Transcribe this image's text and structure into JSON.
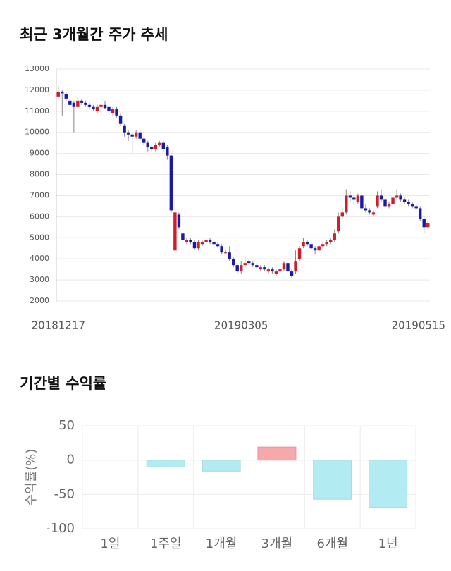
{
  "chart_data": [
    {
      "type": "candlestick",
      "title": "최근 3개월간 주가 추세",
      "categories": [
        "20181217",
        null,
        null,
        null,
        null,
        null,
        null,
        null,
        null,
        null,
        null,
        null,
        null,
        null,
        null,
        null,
        null,
        null,
        null,
        null,
        null,
        null,
        null,
        null,
        null,
        null,
        null,
        null,
        null,
        null,
        null,
        null,
        null,
        null,
        null,
        null,
        null,
        null,
        null,
        null,
        null,
        null,
        null,
        null,
        null,
        null,
        null,
        "20190305",
        null,
        null,
        null,
        null,
        null,
        null,
        null,
        null,
        null,
        null,
        null,
        null,
        null,
        null,
        null,
        null,
        null,
        null,
        null,
        null,
        null,
        null,
        null,
        null,
        null,
        null,
        null,
        null,
        null,
        null,
        null,
        null,
        null,
        null,
        null,
        null,
        null,
        null,
        null,
        null,
        null,
        null,
        null,
        null,
        null,
        null,
        null,
        "20190515"
      ],
      "open": [
        11700,
        11900,
        11800,
        11500,
        11400,
        11200,
        11500,
        11400,
        11300,
        11200,
        11000,
        11200,
        11300,
        11200,
        10900,
        11100,
        10800,
        10300,
        10000,
        9900,
        9800,
        10000,
        9700,
        9500,
        9300,
        9200,
        9400,
        9500,
        9300,
        8900,
        4400,
        6100,
        5200,
        4800,
        4900,
        4800,
        4500,
        4700,
        4800,
        4900,
        4800,
        4700,
        4600,
        4300,
        4300,
        4000,
        3700,
        3400,
        3700,
        3900,
        3800,
        3700,
        3500,
        3600,
        3400,
        3500,
        3300,
        3400,
        3500,
        3800,
        3400,
        3400,
        4000,
        4600,
        4800,
        4700,
        4500,
        4400,
        4600,
        4700,
        4800,
        4900,
        5300,
        6000,
        6200,
        7000,
        6900,
        6700,
        7000,
        6400,
        6300,
        6100,
        6500,
        7000,
        6800,
        6500,
        6600,
        6900,
        7000,
        6800,
        6700,
        6600,
        6500,
        6400,
        5900,
        5500
      ],
      "high": [
        12200,
        12000,
        11900,
        11600,
        11500,
        11700,
        11600,
        11500,
        11400,
        11300,
        11300,
        11400,
        11500,
        11300,
        11200,
        11200,
        10900,
        10400,
        10100,
        10000,
        10100,
        10100,
        9800,
        9600,
        9400,
        9500,
        9600,
        9600,
        9400,
        9000,
        6800,
        6200,
        5300,
        5000,
        5000,
        4900,
        4900,
        4900,
        5000,
        5000,
        4900,
        4800,
        4700,
        4400,
        4600,
        4100,
        3800,
        3900,
        4100,
        4000,
        3900,
        3800,
        3700,
        3700,
        3600,
        3600,
        3500,
        3600,
        3900,
        3900,
        3500,
        4400,
        4600,
        5000,
        4900,
        4800,
        4600,
        4700,
        4800,
        4900,
        5000,
        5400,
        6200,
        6400,
        7300,
        7200,
        7000,
        7100,
        7100,
        6600,
        6400,
        6300,
        7200,
        7300,
        6900,
        6700,
        7000,
        7300,
        7100,
        6900,
        6800,
        6700,
        6600,
        6500,
        6000,
        5800
      ],
      "low": [
        11600,
        10800,
        11500,
        11200,
        10000,
        11100,
        11300,
        11200,
        11100,
        11000,
        10900,
        11100,
        11100,
        10900,
        10800,
        10700,
        10300,
        9800,
        9600,
        9000,
        9700,
        9600,
        9400,
        9100,
        9100,
        9100,
        9300,
        9100,
        8700,
        6200,
        4300,
        5400,
        4800,
        4700,
        4700,
        4400,
        4400,
        4600,
        4700,
        4700,
        4600,
        4500,
        4200,
        4200,
        3900,
        3600,
        3300,
        3300,
        3600,
        3700,
        3600,
        3500,
        3400,
        3400,
        3300,
        3300,
        3200,
        3300,
        3400,
        3300,
        3100,
        3300,
        3900,
        4500,
        4600,
        4400,
        4200,
        4300,
        4500,
        4600,
        4700,
        4800,
        5200,
        5900,
        6100,
        6700,
        6600,
        6600,
        6300,
        6200,
        6100,
        6000,
        6400,
        6700,
        6400,
        6400,
        6500,
        6800,
        6700,
        6600,
        6500,
        6400,
        6300,
        5800,
        5200,
        5400
      ],
      "close": [
        11900,
        11850,
        11600,
        11300,
        11200,
        11500,
        11400,
        11300,
        11200,
        11100,
        11200,
        11300,
        11150,
        11000,
        11100,
        10800,
        10400,
        10000,
        9900,
        9800,
        10000,
        9700,
        9500,
        9300,
        9200,
        9400,
        9500,
        9200,
        8900,
        6300,
        6200,
        5500,
        4900,
        4900,
        4800,
        4500,
        4800,
        4800,
        4900,
        4800,
        4700,
        4600,
        4300,
        4300,
        4000,
        3700,
        3400,
        3700,
        3800,
        3800,
        3700,
        3600,
        3600,
        3500,
        3500,
        3400,
        3400,
        3500,
        3800,
        3400,
        3200,
        3900,
        4500,
        4800,
        4700,
        4500,
        4400,
        4600,
        4700,
        4800,
        4900,
        5200,
        6000,
        6200,
        7000,
        6900,
        6800,
        7000,
        6400,
        6300,
        6200,
        6200,
        7000,
        6800,
        6500,
        6600,
        6900,
        7000,
        6800,
        6700,
        6600,
        6500,
        6400,
        5900,
        5500,
        5700
      ],
      "up_color": "#cc1f26",
      "down_color": "#1a1aa6",
      "ylim": [
        2000,
        13000
      ],
      "yticks": [
        2000,
        3000,
        4000,
        5000,
        6000,
        7000,
        8000,
        9000,
        10000,
        11000,
        12000,
        13000
      ],
      "grid": true
    },
    {
      "type": "bar",
      "title": "기간별 수익률",
      "ylabel": "수익률(%)",
      "categories": [
        "1일",
        "1주일",
        "1개월",
        "3개월",
        "6개월",
        "1년"
      ],
      "values": [
        0,
        -10,
        -16,
        19,
        -57,
        -69
      ],
      "positive_color": "#f7a8ab",
      "negative_color": "#b3ebf2",
      "ylim": [
        -100,
        50
      ],
      "yticks": [
        -100,
        -50,
        0,
        50
      ],
      "grid": true
    }
  ]
}
